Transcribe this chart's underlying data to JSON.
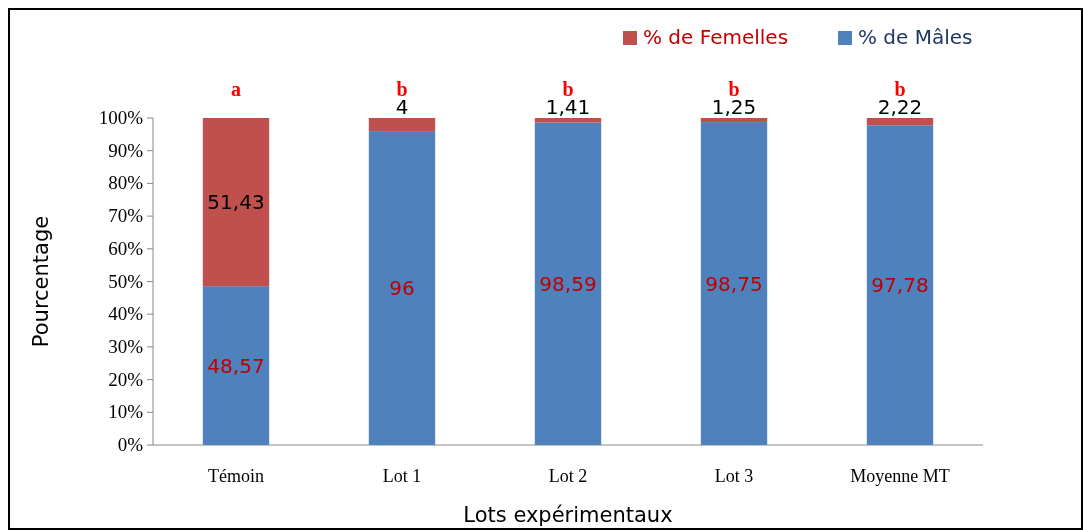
{
  "chart_data": {
    "type": "bar",
    "stacked": true,
    "xlabel": "Lots expérimentaux",
    "ylabel": "Pourcentage",
    "categories": [
      "Témoin",
      "Lot 1",
      "Lot 2",
      "Lot 3",
      "Moyenne MT"
    ],
    "series": [
      {
        "name": "% de Mâles",
        "color": "#4f81bd",
        "values": [
          48.57,
          96,
          98.59,
          98.75,
          97.78
        ],
        "value_labels": [
          "48,57",
          "96",
          "98,59",
          "98,75",
          "97,78"
        ]
      },
      {
        "name": "% de Femelles",
        "color": "#c0504d",
        "values": [
          51.43,
          4,
          1.41,
          1.25,
          2.22
        ],
        "value_labels": [
          "51,43",
          "4",
          "1,41",
          "1,25",
          "2,22"
        ]
      }
    ],
    "ylim": [
      0,
      100
    ],
    "yticks": [
      {
        "value": 0,
        "label": "0%"
      },
      {
        "value": 10,
        "label": "10%"
      },
      {
        "value": 20,
        "label": "20%"
      },
      {
        "value": 30,
        "label": "30%"
      },
      {
        "value": 40,
        "label": "40%"
      },
      {
        "value": 50,
        "label": "50%"
      },
      {
        "value": 60,
        "label": "60%"
      },
      {
        "value": 70,
        "label": "70%"
      },
      {
        "value": 80,
        "label": "80%"
      },
      {
        "value": 90,
        "label": "90%"
      },
      {
        "value": 100,
        "label": "100%"
      }
    ],
    "annotations": [
      {
        "text": "a",
        "x": "Témoin",
        "y": 100
      },
      {
        "text": "b",
        "x": "Lot 1",
        "y": 100
      },
      {
        "text": "b",
        "x": "Lot 2",
        "y": 100
      },
      {
        "text": "b",
        "x": "Lot 3",
        "y": 100
      },
      {
        "text": "b",
        "x": "Moyenne MT",
        "y": 100
      }
    ],
    "legend": "top right",
    "grid": false
  }
}
